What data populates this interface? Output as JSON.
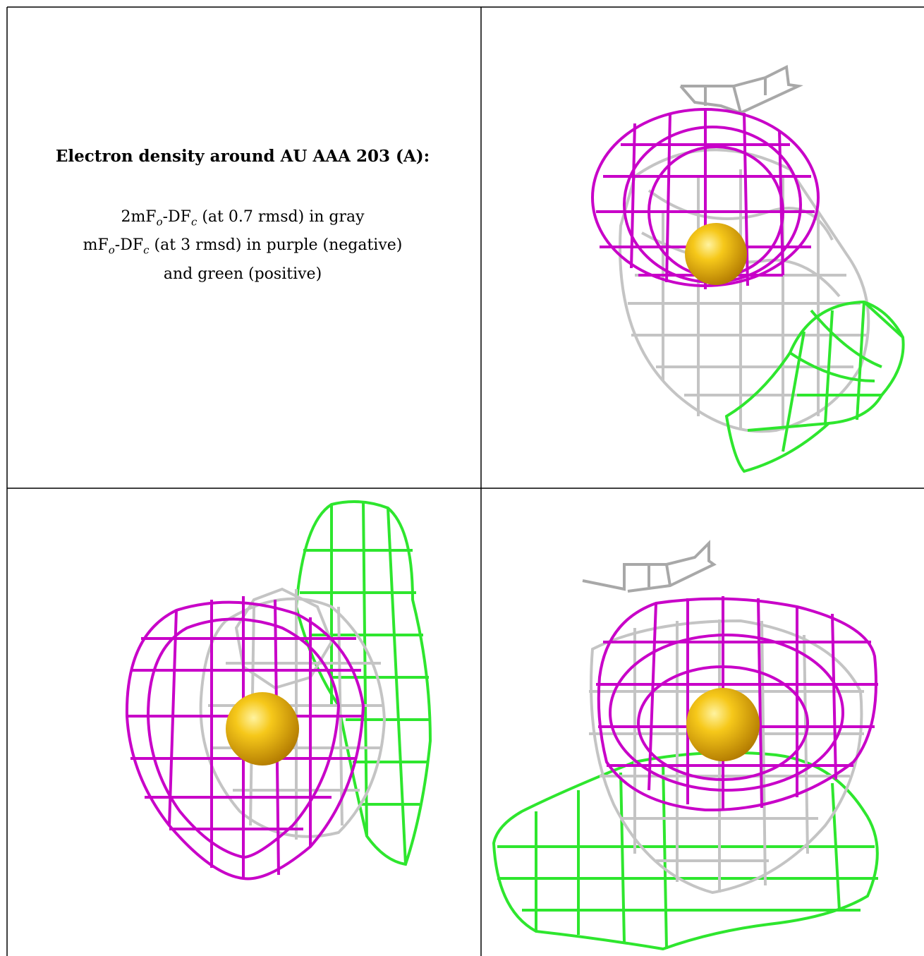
{
  "caption": {
    "title": "Electron density around AU AAA 203 (A):",
    "line1_prefix": "2mF",
    "line1_sub_o": "o",
    "line1_mid": "-DF",
    "line1_sub_c": "c",
    "line1_rest": " (at 0.7 rmsd) in gray",
    "line2_prefix": "mF",
    "line2_sub_o": "o",
    "line2_mid": "-DF",
    "line2_sub_c": "c",
    "line2_rest": " (at 3 rmsd) in purple (negative)",
    "line3": "and green (positive)"
  },
  "colors": {
    "gray_mesh": "#c0c0c0",
    "purple_mesh": "#c800c8",
    "green_mesh": "#2ee62e",
    "gold_atom": "#f0b400",
    "border": "#000000"
  }
}
